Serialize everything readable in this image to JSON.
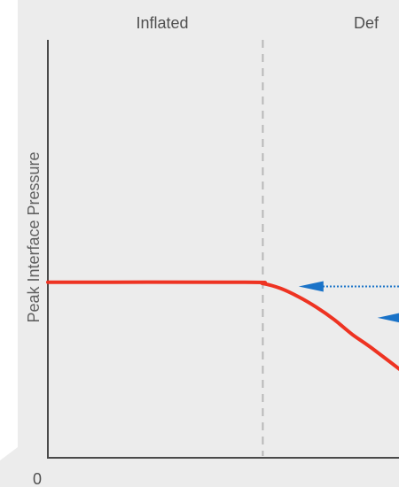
{
  "colors": {
    "panel_background": "#ececec",
    "axis": "#4a4a4a",
    "divider": "#b8b8b8",
    "curve": "#ee3322",
    "arrow": "#1a73c8"
  },
  "chart_data": {
    "type": "line",
    "title": "",
    "xlabel": "",
    "ylabel": "Peak Interface Pressure",
    "y_tick_labels": [
      "0"
    ],
    "regions": [
      {
        "label": "Inflated"
      },
      {
        "label": "Def"
      }
    ],
    "xlim": [
      0,
      10
    ],
    "ylim": [
      0,
      10
    ],
    "divider_x": 6,
    "grid": false,
    "series": [
      {
        "style": "solid",
        "x": [
          0,
          5.5,
          6.0,
          6.5,
          7.0,
          7.5,
          8.0,
          8.5,
          9.0,
          10.0
        ],
        "y": [
          4.2,
          4.2,
          4.17,
          4.05,
          3.85,
          3.6,
          3.3,
          2.95,
          2.65,
          2.0
        ]
      }
    ],
    "annotations": [
      {
        "type": "arrow",
        "style": "dotted",
        "direction": "left",
        "x_from": 10.0,
        "x_to": 7.0,
        "y": 4.1
      },
      {
        "type": "arrow",
        "style": "dotted",
        "direction": "left",
        "x_from": 10.0,
        "x_to": 9.2,
        "y": 3.35
      }
    ]
  }
}
